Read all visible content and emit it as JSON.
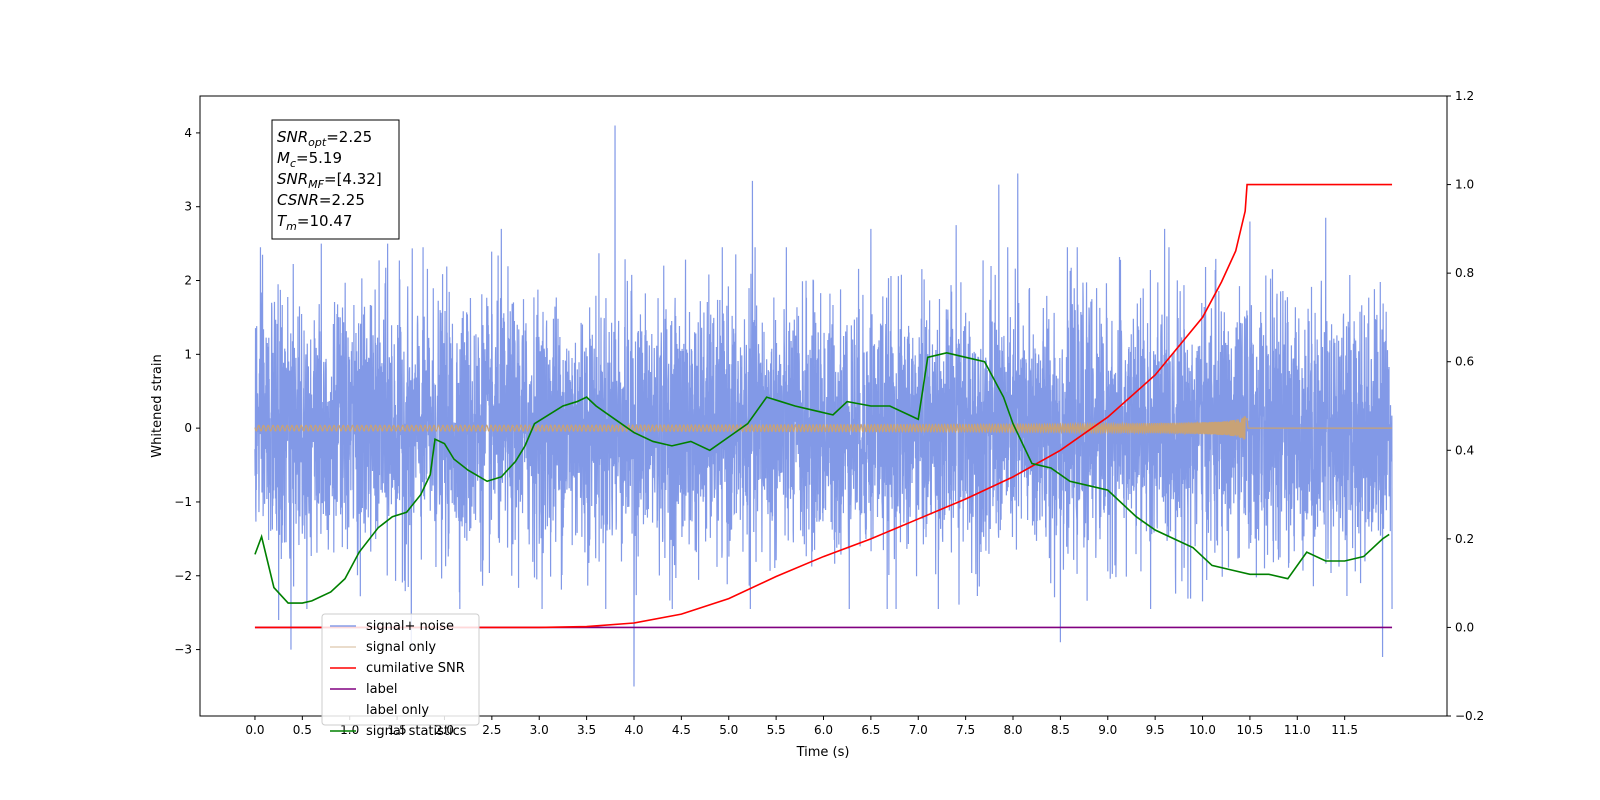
{
  "chart_data": {
    "type": "line",
    "title": "",
    "xlabel": "Time (s)",
    "ylabel": "Whitened strain",
    "y2label": "",
    "xlim": [
      -0.58,
      12.58
    ],
    "ylim": [
      -3.9,
      4.5
    ],
    "y2lim": [
      -0.2,
      1.2
    ],
    "xticks": [
      0.0,
      0.5,
      1.0,
      1.5,
      2.0,
      2.5,
      3.0,
      3.5,
      4.0,
      4.5,
      5.0,
      5.5,
      6.0,
      6.5,
      7.0,
      7.5,
      8.0,
      8.5,
      9.0,
      9.5,
      10.0,
      10.5,
      11.0,
      11.5
    ],
    "xtick_labels": [
      "0.0",
      "0.5",
      "1.0",
      "1.5",
      "2.0",
      "2.5",
      "3.0",
      "3.5",
      "4.0",
      "4.5",
      "5.0",
      "5.5",
      "6.0",
      "6.5",
      "7.0",
      "7.5",
      "8.0",
      "8.5",
      "9.0",
      "9.5",
      "10.0",
      "10.5",
      "11.0",
      "11.5"
    ],
    "yticks": [
      -3,
      -2,
      -1,
      0,
      1,
      2,
      3,
      4
    ],
    "ytick_labels": [
      "−3",
      "−2",
      "−1",
      "0",
      "1",
      "2",
      "3",
      "4"
    ],
    "y2ticks": [
      -0.2,
      0.0,
      0.2,
      0.4,
      0.6,
      0.8,
      1.0,
      1.2
    ],
    "y2tick_labels": [
      "−0.2",
      "0.0",
      "0.2",
      "0.4",
      "0.6",
      "0.8",
      "1.0",
      "1.2"
    ],
    "grid": false,
    "legend_position": "lower-left",
    "annotation": {
      "lines": [
        {
          "sym": "SNR",
          "sub": "opt",
          "value": "=2.25"
        },
        {
          "sym": "M",
          "sub": "c",
          "value": "=5.19"
        },
        {
          "sym": "SNR",
          "sub": "MF",
          "value": "=[4.32]"
        },
        {
          "sym": "CSNR",
          "sub": "",
          "value": "=2.25"
        },
        {
          "sym": "T",
          "sub": "m",
          "value": "=10.47"
        }
      ]
    },
    "series": [
      {
        "name": "signal+ noise",
        "axis": "left",
        "color": "#7b93e6",
        "kind": "noise",
        "duration": 12.0,
        "envelope": 1.35,
        "spikes": [
          {
            "x": 0.08,
            "y": 2.35
          },
          {
            "x": 0.25,
            "y": -2.6
          },
          {
            "x": 0.38,
            "y": -3.0
          },
          {
            "x": 0.7,
            "y": 2.5
          },
          {
            "x": 1.4,
            "y": 2.5
          },
          {
            "x": 1.65,
            "y": -3.0
          },
          {
            "x": 2.6,
            "y": 2.7
          },
          {
            "x": 3.8,
            "y": 4.1
          },
          {
            "x": 4.0,
            "y": -3.5
          },
          {
            "x": 5.25,
            "y": 3.35
          },
          {
            "x": 6.5,
            "y": 2.7
          },
          {
            "x": 7.4,
            "y": 2.75
          },
          {
            "x": 7.85,
            "y": 3.3
          },
          {
            "x": 8.05,
            "y": 3.45
          },
          {
            "x": 8.5,
            "y": -2.9
          },
          {
            "x": 9.6,
            "y": 2.7
          },
          {
            "x": 10.5,
            "y": 2.8
          },
          {
            "x": 11.3,
            "y": 2.85
          },
          {
            "x": 11.9,
            "y": -3.1
          }
        ]
      },
      {
        "name": "signal only",
        "axis": "left",
        "color": "#c8a276",
        "kind": "chirp",
        "t_merge": 10.47,
        "peak_amplitude": 0.18
      },
      {
        "name": "cumilative SNR",
        "axis": "right",
        "color": "#ff0000",
        "x": [
          0.0,
          3.0,
          3.5,
          4.0,
          4.5,
          5.0,
          5.5,
          6.0,
          6.5,
          7.0,
          7.5,
          8.0,
          8.5,
          9.0,
          9.5,
          10.0,
          10.2,
          10.35,
          10.45,
          10.47,
          12.0
        ],
        "values": [
          0.0,
          0.0,
          0.002,
          0.01,
          0.03,
          0.065,
          0.115,
          0.16,
          0.2,
          0.245,
          0.29,
          0.34,
          0.4,
          0.475,
          0.57,
          0.7,
          0.78,
          0.85,
          0.94,
          1.0,
          1.0
        ]
      },
      {
        "name": "label",
        "axis": "right",
        "color": "#800080",
        "x": [
          0.0,
          12.0
        ],
        "values": [
          0.0,
          0.0
        ]
      },
      {
        "name": "label only",
        "axis": "right",
        "color": "#800080",
        "x": [],
        "values": []
      },
      {
        "name": "signal statistics",
        "axis": "right",
        "color": "#008000",
        "x": [
          0.0,
          0.07,
          0.2,
          0.35,
          0.5,
          0.6,
          0.8,
          0.95,
          1.1,
          1.3,
          1.45,
          1.6,
          1.75,
          1.85,
          1.9,
          2.0,
          2.1,
          2.25,
          2.45,
          2.6,
          2.75,
          2.85,
          2.95,
          3.1,
          3.25,
          3.4,
          3.5,
          3.6,
          3.8,
          4.0,
          4.2,
          4.4,
          4.6,
          4.8,
          5.0,
          5.2,
          5.4,
          5.55,
          5.7,
          5.9,
          6.1,
          6.25,
          6.5,
          6.7,
          6.9,
          7.0,
          7.1,
          7.3,
          7.5,
          7.7,
          7.9,
          8.0,
          8.2,
          8.4,
          8.6,
          8.8,
          9.0,
          9.3,
          9.5,
          9.7,
          9.9,
          10.1,
          10.3,
          10.5,
          10.7,
          10.9,
          11.1,
          11.3,
          11.5,
          11.7,
          11.9,
          11.97
        ],
        "values": [
          0.165,
          0.205,
          0.09,
          0.055,
          0.055,
          0.06,
          0.08,
          0.11,
          0.17,
          0.225,
          0.25,
          0.26,
          0.3,
          0.345,
          0.425,
          0.415,
          0.38,
          0.355,
          0.33,
          0.34,
          0.375,
          0.41,
          0.46,
          0.48,
          0.5,
          0.51,
          0.52,
          0.5,
          0.47,
          0.44,
          0.42,
          0.41,
          0.42,
          0.4,
          0.43,
          0.46,
          0.52,
          0.51,
          0.5,
          0.49,
          0.48,
          0.51,
          0.5,
          0.5,
          0.48,
          0.47,
          0.61,
          0.62,
          0.61,
          0.6,
          0.52,
          0.46,
          0.37,
          0.36,
          0.33,
          0.32,
          0.31,
          0.25,
          0.22,
          0.2,
          0.18,
          0.14,
          0.13,
          0.12,
          0.12,
          0.11,
          0.17,
          0.15,
          0.15,
          0.16,
          0.2,
          0.21
        ]
      }
    ]
  }
}
